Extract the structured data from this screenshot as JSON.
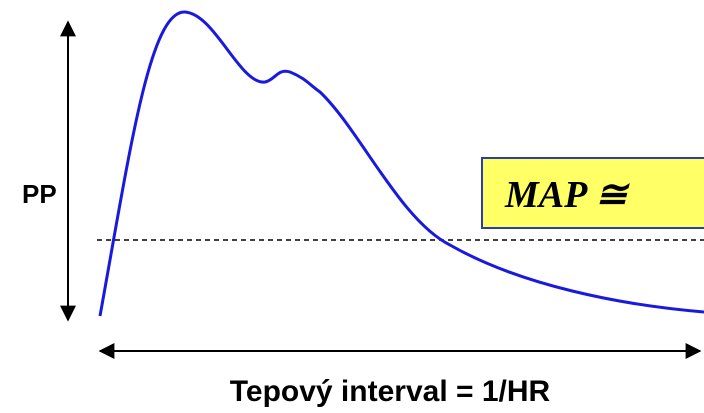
{
  "labels": {
    "pp": "PP",
    "formula": "MAP ≅",
    "x_axis": "Tepový interval = 1/HR"
  }
}
